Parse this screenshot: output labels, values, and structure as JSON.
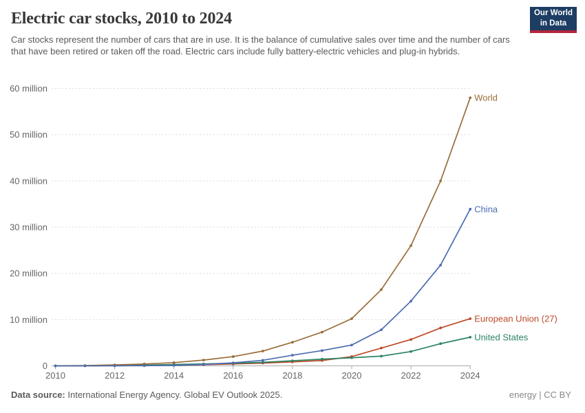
{
  "header": {
    "title": "Electric car stocks, 2010 to 2024",
    "subtitle": "Car stocks represent the number of cars that are in use. It is the balance of cumulative sales over time and the number of cars that have been retired or taken off the road. Electric cars include fully battery-electric vehicles and plug-in hybrids.",
    "logo": {
      "line1": "Our World",
      "line2": "in Data"
    }
  },
  "chart_data": {
    "type": "line",
    "title": "Electric car stocks, 2010 to 2024",
    "x": [
      2010,
      2011,
      2012,
      2013,
      2014,
      2015,
      2016,
      2017,
      2018,
      2019,
      2020,
      2021,
      2022,
      2023,
      2024
    ],
    "series": [
      {
        "name": "World",
        "color": "#996d39",
        "values": [
          0.02,
          0.06,
          0.2,
          0.4,
          0.7,
          1.25,
          2.0,
          3.2,
          5.1,
          7.3,
          10.2,
          16.5,
          26.0,
          40.0,
          58.0
        ]
      },
      {
        "name": "China",
        "color": "#4c6cb0",
        "values": [
          0.0,
          0.01,
          0.02,
          0.03,
          0.1,
          0.3,
          0.65,
          1.2,
          2.3,
          3.3,
          4.5,
          7.8,
          14.0,
          21.8,
          33.9
        ]
      },
      {
        "name": "European Union (27)",
        "color": "#bc4a28",
        "values": [
          0.0,
          0.01,
          0.03,
          0.07,
          0.15,
          0.25,
          0.4,
          0.6,
          0.85,
          1.15,
          2.0,
          3.85,
          5.7,
          8.2,
          10.2
        ]
      },
      {
        "name": "United States",
        "color": "#2c8465",
        "values": [
          0.0,
          0.02,
          0.07,
          0.17,
          0.29,
          0.41,
          0.56,
          0.76,
          1.1,
          1.45,
          1.75,
          2.1,
          3.1,
          4.8,
          6.2
        ]
      }
    ],
    "unit": "million",
    "ylim": [
      0,
      60
    ],
    "y_ticks": [
      {
        "value": 0,
        "label": "0"
      },
      {
        "value": 10,
        "label": "10 million"
      },
      {
        "value": 20,
        "label": "20 million"
      },
      {
        "value": 30,
        "label": "30 million"
      },
      {
        "value": 40,
        "label": "40 million"
      },
      {
        "value": 50,
        "label": "50 million"
      },
      {
        "value": 60,
        "label": "60 million"
      }
    ],
    "x_ticks": [
      2010,
      2012,
      2014,
      2016,
      2018,
      2020,
      2022,
      2024
    ],
    "grid": "horizontal-dashed",
    "legend_position": "end-of-line-labels"
  },
  "footer": {
    "source_label": "Data source:",
    "source_text": " International Energy Agency. Global EV Outlook 2025.",
    "right_text": "energy | CC BY"
  },
  "colors": {
    "logo_navy": "#1d3d63",
    "logo_red": "#b2273c",
    "grid": "#dadada",
    "axis": "#a8a8a8",
    "tick_label": "#666666"
  }
}
